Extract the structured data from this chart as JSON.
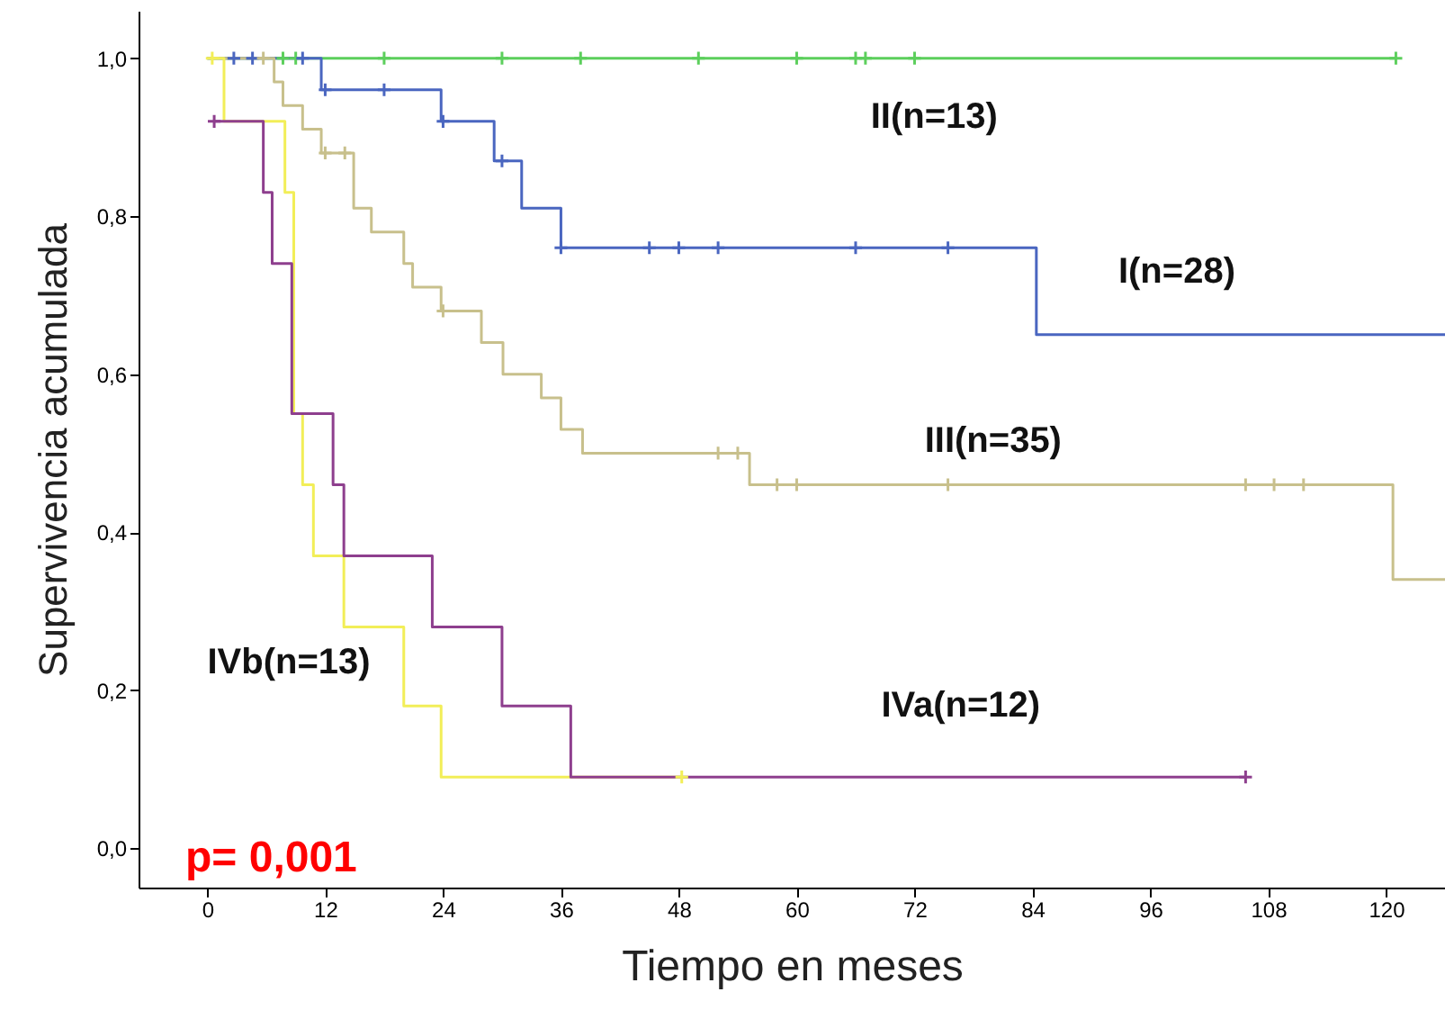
{
  "chart_data": {
    "type": "step",
    "xlabel": "Tiempo en meses",
    "ylabel": "Supervivencia acumulada",
    "xlim": [
      -7,
      126
    ],
    "ylim": [
      -0.05,
      1.06
    ],
    "xticks": [
      0,
      12,
      24,
      36,
      48,
      60,
      72,
      84,
      96,
      108,
      120
    ],
    "yticks": [
      {
        "value": 0,
        "label": "0,0"
      },
      {
        "value": 0.2,
        "label": "0,2"
      },
      {
        "value": 0.4,
        "label": "0,4"
      },
      {
        "value": 0.6,
        "label": "0,6"
      },
      {
        "value": 0.8,
        "label": "0,8"
      },
      {
        "value": 1,
        "label": "1,0"
      }
    ],
    "line_style": "solid",
    "series": [
      {
        "name": "II(n=13)",
        "color": "#5ccf5c",
        "x": [
          0,
          121
        ],
        "values": [
          1,
          1
        ]
      },
      {
        "name": "I(n=28)",
        "color": "#4a66c0",
        "x": [
          0,
          11.6,
          23.8,
          29.2,
          32,
          36,
          84.4,
          126
        ],
        "values": [
          1,
          0.96,
          0.92,
          0.87,
          0.81,
          0.76,
          0.65,
          0.65
        ]
      },
      {
        "name": "III(n=35)",
        "color": "#c8c08c",
        "x": [
          0,
          6.8,
          7.7,
          9.7,
          11.6,
          14.9,
          16.7,
          20,
          20.9,
          23.8,
          27.9,
          30.1,
          34,
          36,
          38.2,
          55.2,
          120.7,
          126
        ],
        "values": [
          1,
          0.97,
          0.94,
          0.91,
          0.88,
          0.81,
          0.78,
          0.74,
          0.71,
          0.68,
          0.64,
          0.6,
          0.57,
          0.53,
          0.5,
          0.46,
          0.34,
          0.34
        ]
      },
      {
        "name": "IVb(n=13)",
        "color": "#f2ee58",
        "x": [
          0.5,
          1.7,
          7.9,
          8.8,
          9.7,
          10.8,
          13.9,
          20,
          23.8,
          48.3
        ],
        "values": [
          1,
          0.92,
          0.83,
          0.55,
          0.46,
          0.37,
          0.28,
          0.18,
          0.09,
          0.09
        ]
      },
      {
        "name": "IVa(n=12)",
        "color": "#8e3f8e",
        "x": [
          0.7,
          5.7,
          6.6,
          8.6,
          12.8,
          13.9,
          22.9,
          30,
          37,
          105.7
        ],
        "values": [
          0.92,
          0.83,
          0.74,
          0.55,
          0.46,
          0.37,
          0.28,
          0.18,
          0.09,
          0.09
        ]
      },
      {
        "type": "scatter",
        "marker": "cross",
        "color": "#5ccf5c",
        "x": [
          7.7,
          9,
          18,
          30,
          38,
          50,
          60,
          66,
          67,
          72,
          121
        ],
        "values": [
          1,
          1,
          1,
          1,
          1,
          1,
          1,
          1,
          1,
          1,
          1
        ]
      },
      {
        "type": "scatter",
        "marker": "cross",
        "color": "#4a66c0",
        "x": [
          2.7,
          4.6,
          9.7,
          12,
          18,
          24,
          30,
          36,
          45,
          48,
          52,
          66,
          75.4
        ],
        "values": [
          1,
          1,
          1,
          0.96,
          0.96,
          0.92,
          0.87,
          0.76,
          0.76,
          0.76,
          0.76,
          0.76,
          0.76
        ]
      },
      {
        "type": "scatter",
        "marker": "cross",
        "color": "#c8c08c",
        "x": [
          5.7,
          12,
          14,
          24,
          52,
          54,
          58,
          60,
          75.4,
          105.7,
          108.6,
          111.6
        ],
        "values": [
          1,
          0.88,
          0.88,
          0.68,
          0.5,
          0.5,
          0.46,
          0.46,
          0.46,
          0.46,
          0.46,
          0.46
        ]
      },
      {
        "type": "scatter",
        "marker": "cross",
        "color": "#f2ee58",
        "x": [
          0.5,
          48.3
        ],
        "values": [
          1,
          0.09
        ]
      },
      {
        "type": "scatter",
        "marker": "cross",
        "color": "#8e3f8e",
        "x": [
          0.7,
          105.7
        ],
        "values": [
          0.92,
          0.09
        ]
      }
    ],
    "annotations": [
      "p= 0,001"
    ]
  }
}
